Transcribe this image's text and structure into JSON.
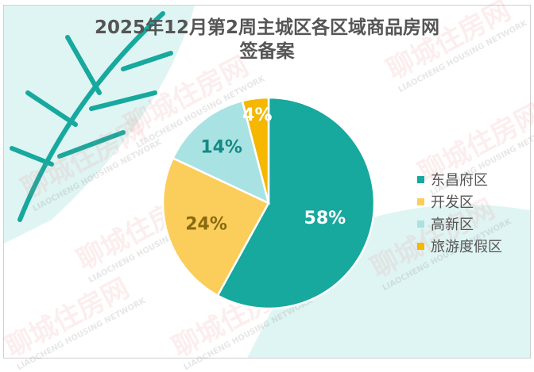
{
  "watermark": {
    "cn": "聊城住房网",
    "en": "LIAOCHENG HOUSING NETWORK"
  },
  "chart_data": {
    "type": "pie",
    "title": "2025年12月第2周主城区各区域商品房网签备案",
    "title_lines": [
      "2025年12月第2周主城区各区域商品房网",
      "签备案"
    ],
    "categories": [
      "东昌府区",
      "开发区",
      "高新区",
      "旅游度假区"
    ],
    "values": [
      58,
      24,
      14,
      4
    ],
    "labels": [
      "58%",
      "24%",
      "14%",
      "4%"
    ],
    "colors": [
      "#17a89e",
      "#fbcd5a",
      "#a9e2e2",
      "#f5b700"
    ],
    "label_colors": [
      "#ffffff",
      "#8a6a10",
      "#138a84",
      "#ffffff"
    ],
    "start": "top",
    "direction": "clockwise",
    "legend_position": "right"
  }
}
